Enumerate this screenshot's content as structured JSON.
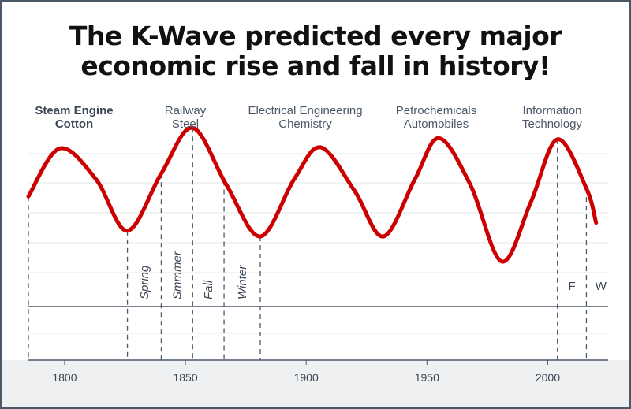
{
  "title_lines": [
    "The K-Wave predicted every major",
    "economic rise and fall in history!"
  ],
  "colors": {
    "wave": "#cc0000",
    "frame": "#4a5868",
    "axis_band": "#eef0f2",
    "guides": "#4a5868",
    "grid": "#e6e8ea"
  },
  "chart_data": {
    "type": "line",
    "x_ticks": [
      1800,
      1850,
      1900,
      1950,
      2000
    ],
    "xlim": [
      1785,
      2025
    ],
    "grid": "horizontal",
    "series": [
      {
        "x": [
          1785,
          1798,
          1813,
          1826,
          1840,
          1853,
          1867,
          1881,
          1895,
          1906,
          1920,
          1932,
          1945,
          1955,
          1968,
          1981,
          1993,
          2004,
          2016,
          2020
        ],
        "y": [
          0.35,
          0.77,
          0.5,
          0.05,
          0.55,
          0.95,
          0.45,
          0.0,
          0.5,
          0.78,
          0.4,
          0.0,
          0.5,
          0.86,
          0.45,
          -0.22,
          0.3,
          0.85,
          0.42,
          0.12
        ]
      }
    ],
    "eras": [
      {
        "lines": [
          "Steam Engine",
          "Cotton"
        ],
        "bold": true
      },
      {
        "lines": [
          "Railway",
          "Steel"
        ],
        "bold": false
      },
      {
        "lines": [
          "Electrical Engineering",
          "Chemistry"
        ],
        "bold": false
      },
      {
        "lines": [
          "Petrochemicals",
          "Automobiles"
        ],
        "bold": false
      },
      {
        "lines": [
          "Information",
          "Technology"
        ],
        "bold": false
      }
    ],
    "phase_markers": [
      {
        "year": 1826,
        "label": ""
      },
      {
        "year": 1840,
        "label": "Spring"
      },
      {
        "year": 1853,
        "label": "Smmmer"
      },
      {
        "year": 1866,
        "label": "Fall"
      },
      {
        "year": 1881,
        "label": "Winter"
      },
      {
        "year": 2004,
        "label": ""
      },
      {
        "year": 2016,
        "label": ""
      }
    ],
    "late_phase_letters": [
      {
        "year": 2010,
        "label": "F"
      },
      {
        "year": 2022,
        "label": "W"
      }
    ]
  }
}
